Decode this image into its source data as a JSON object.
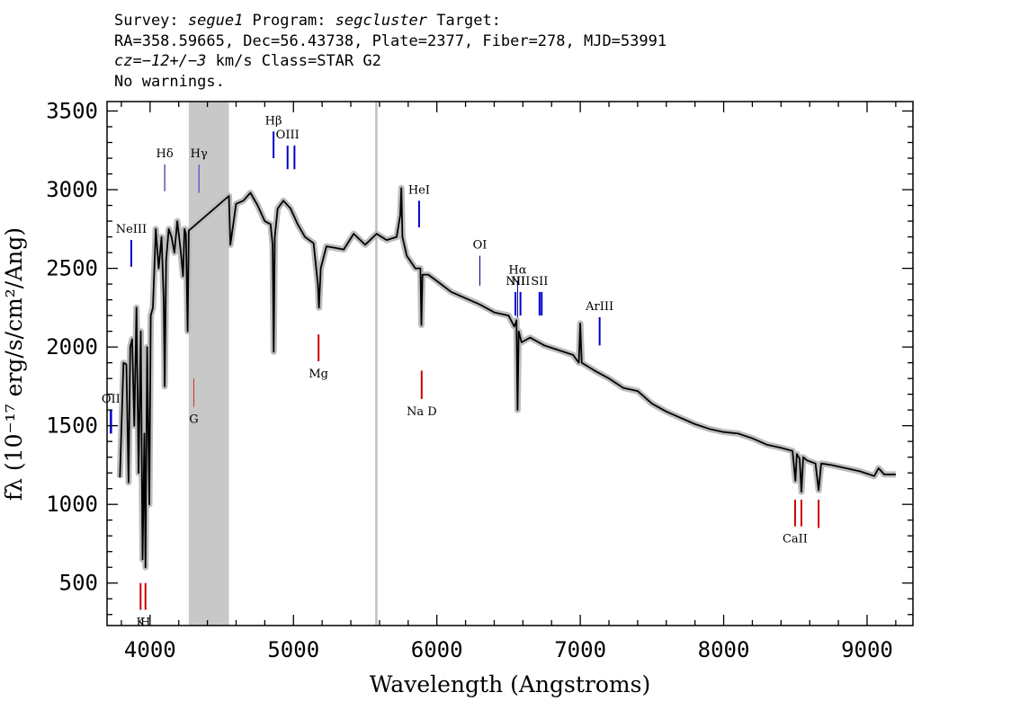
{
  "header": {
    "line1": {
      "survey_label": "Survey: ",
      "survey": "segue1",
      "program_label": " Program: ",
      "program": "segcluster",
      "target_label": " Target:"
    },
    "line2": "RA=358.59665, Dec=56.43738, Plate=2377, Fiber=278, MJD=53991",
    "line3": {
      "cz_label": "cz",
      "cz_eq": "=",
      "cz_value": "−12+/−3",
      "cz_rest": " km/s Class=STAR G2"
    },
    "line4": "No warnings."
  },
  "chart_data": {
    "type": "line",
    "title": "",
    "xlabel": "Wavelength (Angstroms)",
    "ylabel": "fλ (10⁻¹⁷ erg/s/cm²/Ang)",
    "xlim": [
      3700,
      9320
    ],
    "ylim": [
      230,
      3560
    ],
    "x_ticks": [
      4000,
      5000,
      6000,
      7000,
      8000,
      9000
    ],
    "x_tick_labels": [
      "4000",
      "5000",
      "6000",
      "7000",
      "8000",
      "9000"
    ],
    "y_ticks": [
      500,
      1000,
      1500,
      2000,
      2500,
      3000,
      3500
    ],
    "y_tick_labels": [
      "500",
      "1000",
      "1500",
      "2000",
      "2500",
      "3000",
      "3500"
    ],
    "masked_region": [
      4270,
      4550
    ],
    "sky_line": 5578,
    "series": [
      {
        "name": "flux",
        "x": [
          3790,
          3815,
          3835,
          3850,
          3862,
          3875,
          3890,
          3905,
          3920,
          3935,
          3948,
          3960,
          3968,
          3980,
          3995,
          4005,
          4020,
          4040,
          4060,
          4080,
          4095,
          4102,
          4112,
          4130,
          4150,
          4170,
          4190,
          4215,
          4230,
          4240,
          4250,
          4262,
          4270,
          4550,
          4560,
          4600,
          4650,
          4700,
          4750,
          4800,
          4840,
          4855,
          4862,
          4870,
          4890,
          4930,
          4980,
          5030,
          5080,
          5140,
          5170,
          5178,
          5190,
          5230,
          5290,
          5350,
          5420,
          5500,
          5580,
          5650,
          5720,
          5745,
          5752,
          5760,
          5790,
          5850,
          5885,
          5892,
          5900,
          5940,
          6000,
          6100,
          6200,
          6300,
          6400,
          6500,
          6540,
          6555,
          6563,
          6571,
          6590,
          6650,
          6750,
          6850,
          6950,
          6990,
          7000,
          7010,
          7100,
          7200,
          7300,
          7400,
          7500,
          7600,
          7700,
          7800,
          7900,
          8000,
          8100,
          8200,
          8300,
          8400,
          8480,
          8500,
          8510,
          8530,
          8542,
          8555,
          8580,
          8640,
          8662,
          8680,
          8750,
          8850,
          8950,
          9050,
          9080,
          9120,
          9200
        ],
        "y": [
          1170,
          1900,
          1890,
          1140,
          2000,
          2050,
          1500,
          2250,
          1200,
          2100,
          650,
          1450,
          600,
          2000,
          1000,
          2200,
          2250,
          2750,
          2500,
          2700,
          2300,
          1750,
          2550,
          2750,
          2700,
          2600,
          2800,
          2600,
          2450,
          2750,
          2720,
          2100,
          2740,
          2960,
          2650,
          2910,
          2930,
          2980,
          2900,
          2800,
          2780,
          2650,
          1970,
          2700,
          2880,
          2930,
          2880,
          2780,
          2700,
          2660,
          2400,
          2250,
          2500,
          2640,
          2630,
          2620,
          2720,
          2650,
          2720,
          2680,
          2700,
          2840,
          3010,
          2700,
          2580,
          2500,
          2500,
          2140,
          2460,
          2460,
          2420,
          2350,
          2310,
          2270,
          2220,
          2200,
          2130,
          2170,
          1600,
          2100,
          2030,
          2060,
          2010,
          1980,
          1950,
          1900,
          2150,
          1900,
          1850,
          1800,
          1740,
          1720,
          1640,
          1590,
          1550,
          1510,
          1480,
          1460,
          1450,
          1420,
          1380,
          1360,
          1340,
          1150,
          1320,
          1290,
          1080,
          1300,
          1280,
          1260,
          1090,
          1260,
          1250,
          1230,
          1210,
          1180,
          1230,
          1190,
          1190
        ]
      }
    ],
    "line_markers": [
      {
        "label": "OII",
        "x": 3727,
        "y0": 1450,
        "y1": 1600,
        "color": "#0000cc",
        "width": 2.5
      },
      {
        "label": "NeIII",
        "x": 3869,
        "y0": 2510,
        "y1": 2680,
        "color": "#0000cc",
        "width": 2
      },
      {
        "label": "Hδ",
        "x": 4102,
        "y0": 2990,
        "y1": 3160,
        "color": "#000080",
        "width": 1
      },
      {
        "label": "Hγ",
        "x": 4341,
        "y0": 2980,
        "y1": 3160,
        "color": "#3333cc",
        "width": 1
      },
      {
        "label": "Hβ",
        "x": 4861,
        "y0": 3200,
        "y1": 3370,
        "color": "#0000cc",
        "width": 2
      },
      {
        "label": "OIII",
        "x": 4959,
        "y0": 3130,
        "y1": 3280,
        "color": "#0000cc",
        "width": 2
      },
      {
        "label": "",
        "x": 5007,
        "y0": 3130,
        "y1": 3280,
        "color": "#0000cc",
        "width": 2
      },
      {
        "label": "HeI",
        "x": 5876,
        "y0": 2760,
        "y1": 2930,
        "color": "#0000cc",
        "width": 2
      },
      {
        "label": "OI",
        "x": 6300,
        "y0": 2390,
        "y1": 2580,
        "color": "#000080",
        "width": 1
      },
      {
        "label": "NII",
        "x": 6548,
        "y0": 2200,
        "y1": 2350,
        "color": "#0000cc",
        "width": 2
      },
      {
        "label": "Hα",
        "x": 6563,
        "y0": 2170,
        "y1": 2420,
        "color": "#000080",
        "width": 1
      },
      {
        "label": "NII",
        "x": 6583,
        "y0": 2200,
        "y1": 2350,
        "color": "#0000cc",
        "width": 2
      },
      {
        "label": "SII",
        "x": 6716,
        "y0": 2200,
        "y1": 2350,
        "color": "#0000cc",
        "width": 2
      },
      {
        "label": "",
        "x": 6731,
        "y0": 2200,
        "y1": 2350,
        "color": "#0000cc",
        "width": 2
      },
      {
        "label": "ArIII",
        "x": 7135,
        "y0": 2010,
        "y1": 2190,
        "color": "#0000cc",
        "width": 2
      },
      {
        "label": "K",
        "x": 3934,
        "y0": 330,
        "y1": 500,
        "color": "#cc0000",
        "width": 2
      },
      {
        "label": "H",
        "x": 3968,
        "y0": 330,
        "y1": 500,
        "color": "#cc0000",
        "width": 2
      },
      {
        "label": "G",
        "x": 4305,
        "y0": 1620,
        "y1": 1800,
        "color": "#cc3333",
        "width": 1
      },
      {
        "label": "Mg",
        "x": 5175,
        "y0": 1910,
        "y1": 2080,
        "color": "#cc0000",
        "width": 2
      },
      {
        "label": "Na D",
        "x": 5894,
        "y0": 1670,
        "y1": 1850,
        "color": "#cc0000",
        "width": 2
      },
      {
        "label": "CaII",
        "x": 8498,
        "y0": 860,
        "y1": 1030,
        "color": "#cc0000",
        "width": 2
      },
      {
        "label": "",
        "x": 8542,
        "y0": 860,
        "y1": 1030,
        "color": "#cc0000",
        "width": 2
      },
      {
        "label": "",
        "x": 8662,
        "y0": 850,
        "y1": 1030,
        "color": "#cc0000",
        "width": 2
      }
    ]
  }
}
